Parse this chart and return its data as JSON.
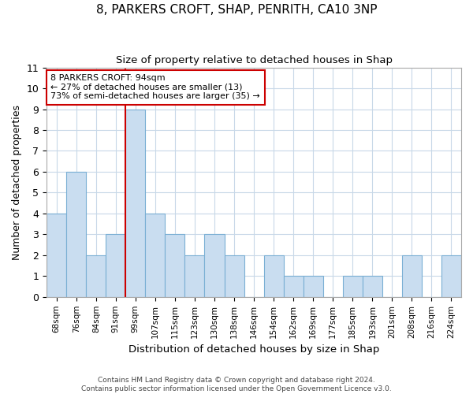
{
  "title": "8, PARKERS CROFT, SHAP, PENRITH, CA10 3NP",
  "subtitle": "Size of property relative to detached houses in Shap",
  "xlabel": "Distribution of detached houses by size in Shap",
  "ylabel": "Number of detached properties",
  "bin_labels": [
    "68sqm",
    "76sqm",
    "84sqm",
    "91sqm",
    "99sqm",
    "107sqm",
    "115sqm",
    "123sqm",
    "130sqm",
    "138sqm",
    "146sqm",
    "154sqm",
    "162sqm",
    "169sqm",
    "177sqm",
    "185sqm",
    "193sqm",
    "201sqm",
    "208sqm",
    "216sqm",
    "224sqm"
  ],
  "bar_heights": [
    4,
    6,
    2,
    3,
    9,
    4,
    3,
    2,
    3,
    2,
    0,
    2,
    1,
    1,
    0,
    1,
    1,
    0,
    2,
    0,
    2
  ],
  "bar_color": "#c9ddf0",
  "bar_edge_color": "#7aafd4",
  "property_line_x": 3.5,
  "property_line_color": "#cc0000",
  "annotation_line1": "8 PARKERS CROFT: 94sqm",
  "annotation_line2": "← 27% of detached houses are smaller (13)",
  "annotation_line3": "73% of semi-detached houses are larger (35) →",
  "annotation_box_edge_color": "#cc0000",
  "ylim": [
    0,
    11
  ],
  "yticks": [
    0,
    1,
    2,
    3,
    4,
    5,
    6,
    7,
    8,
    9,
    10,
    11
  ],
  "footer_line1": "Contains HM Land Registry data © Crown copyright and database right 2024.",
  "footer_line2": "Contains public sector information licensed under the Open Government Licence v3.0.",
  "background_color": "#ffffff",
  "grid_color": "#c8d8e8"
}
